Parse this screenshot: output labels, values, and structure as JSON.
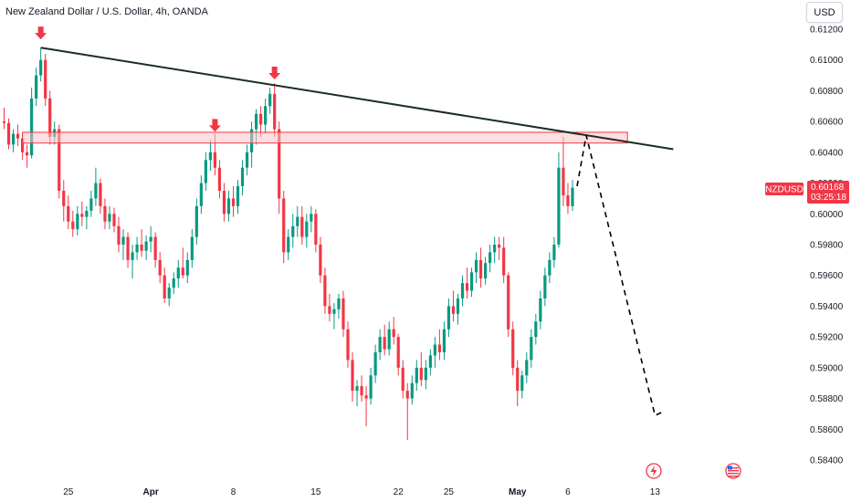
{
  "header": {
    "title": "New Zealand Dollar / U.S. Dollar, 4h, OANDA",
    "currency_button": "USD"
  },
  "colors": {
    "up": "#089981",
    "down": "#f23645",
    "trendline": "#1b2e1f",
    "zone_fill": "#f7c5c8",
    "zone_border": "#f23645",
    "arrow": "#f23645",
    "symbol_badge": "#f23645",
    "projection": "#000000"
  },
  "icons": [
    "lightning-event-icon",
    "us-flag-event-icon"
  ],
  "chart_data": {
    "type": "candlestick",
    "symbol": "NZDUSD",
    "last_price": "0.60168",
    "countdown": "03:25:18",
    "price_axis": {
      "min": 0.584,
      "max": 0.6125,
      "ticks": [
        "0.61200",
        "0.61000",
        "0.60800",
        "0.60600",
        "0.60400",
        "0.60200",
        "0.60000",
        "0.59800",
        "0.59600",
        "0.59400",
        "0.59200",
        "0.59000",
        "0.58800",
        "0.58600",
        "0.58400"
      ]
    },
    "time_axis": {
      "labels": [
        {
          "text": "25",
          "bar": 14,
          "bold": false
        },
        {
          "text": "Apr",
          "bar": 32,
          "bold": true
        },
        {
          "text": "8",
          "bar": 50,
          "bold": false
        },
        {
          "text": "15",
          "bar": 68,
          "bold": false
        },
        {
          "text": "22",
          "bar": 86,
          "bold": false
        },
        {
          "text": "25",
          "bar": 97,
          "bold": false
        },
        {
          "text": "May",
          "bar": 112,
          "bold": true
        },
        {
          "text": "6",
          "bar": 123,
          "bold": false
        },
        {
          "text": "13",
          "bar": 142,
          "bold": false
        }
      ]
    },
    "zone": {
      "top": 0.6053,
      "bottom": 0.6046,
      "start_bar": 4,
      "end_bar": 136
    },
    "trendline": {
      "start_bar": 8,
      "start_price": 0.6108,
      "end_bar": 146,
      "end_price": 0.6042
    },
    "resistance_arrows": [
      {
        "bar": 8,
        "price": 0.6111
      },
      {
        "bar": 46,
        "price": 0.6051
      },
      {
        "bar": 59,
        "price": 0.6085
      }
    ],
    "projection": [
      {
        "bar": 125,
        "price": 0.6018
      },
      {
        "bar": 127,
        "price": 0.6051
      },
      {
        "bar": 142,
        "price": 0.5869
      },
      {
        "bar": 143.5,
        "price": 0.5871
      }
    ],
    "candles": [
      [
        0.606,
        0.6069,
        0.6055,
        0.6059
      ],
      [
        0.6059,
        0.6062,
        0.6042,
        0.6045
      ],
      [
        0.6045,
        0.6055,
        0.604,
        0.6052
      ],
      [
        0.6052,
        0.6058,
        0.6044,
        0.6049
      ],
      [
        0.6049,
        0.6052,
        0.6035,
        0.604
      ],
      [
        0.604,
        0.6045,
        0.603,
        0.6038
      ],
      [
        0.6038,
        0.6082,
        0.6036,
        0.6075
      ],
      [
        0.6075,
        0.6095,
        0.607,
        0.609
      ],
      [
        0.609,
        0.6108,
        0.6086,
        0.61
      ],
      [
        0.61,
        0.6104,
        0.607,
        0.6075
      ],
      [
        0.6075,
        0.608,
        0.6045,
        0.605
      ],
      [
        0.605,
        0.606,
        0.6045,
        0.6055
      ],
      [
        0.6055,
        0.6058,
        0.601,
        0.6015
      ],
      [
        0.6015,
        0.6022,
        0.5995,
        0.6005
      ],
      [
        0.6005,
        0.6012,
        0.599,
        0.5995
      ],
      [
        0.5995,
        0.6002,
        0.5985,
        0.599
      ],
      [
        0.599,
        0.6005,
        0.5986,
        0.6
      ],
      [
        0.6,
        0.6008,
        0.5992,
        0.5998
      ],
      [
        0.5998,
        0.6005,
        0.599,
        0.6002
      ],
      [
        0.6002,
        0.6015,
        0.5998,
        0.601
      ],
      [
        0.601,
        0.603,
        0.6005,
        0.602
      ],
      [
        0.602,
        0.6023,
        0.6,
        0.6005
      ],
      [
        0.6005,
        0.601,
        0.599,
        0.5995
      ],
      [
        0.5995,
        0.6005,
        0.599,
        0.6
      ],
      [
        0.6,
        0.6004,
        0.5988,
        0.5992
      ],
      [
        0.5992,
        0.5998,
        0.5975,
        0.598
      ],
      [
        0.598,
        0.599,
        0.597,
        0.5985
      ],
      [
        0.5985,
        0.5988,
        0.5965,
        0.597
      ],
      [
        0.597,
        0.598,
        0.5958,
        0.5975
      ],
      [
        0.5975,
        0.5985,
        0.597,
        0.598
      ],
      [
        0.598,
        0.599,
        0.5972,
        0.5976
      ],
      [
        0.5976,
        0.5986,
        0.597,
        0.5982
      ],
      [
        0.5982,
        0.5992,
        0.5975,
        0.5985
      ],
      [
        0.5985,
        0.5988,
        0.5965,
        0.597
      ],
      [
        0.597,
        0.5975,
        0.5955,
        0.596
      ],
      [
        0.596,
        0.5965,
        0.5942,
        0.5945
      ],
      [
        0.5945,
        0.5955,
        0.594,
        0.5952
      ],
      [
        0.5952,
        0.5962,
        0.5948,
        0.5958
      ],
      [
        0.5958,
        0.597,
        0.5952,
        0.5965
      ],
      [
        0.5965,
        0.5978,
        0.5958,
        0.596
      ],
      [
        0.596,
        0.5975,
        0.5955,
        0.597
      ],
      [
        0.597,
        0.599,
        0.5965,
        0.5985
      ],
      [
        0.5985,
        0.601,
        0.598,
        0.6005
      ],
      [
        0.6005,
        0.6025,
        0.6,
        0.602
      ],
      [
        0.602,
        0.604,
        0.6015,
        0.6035
      ],
      [
        0.6035,
        0.6048,
        0.6028,
        0.604
      ],
      [
        0.604,
        0.6052,
        0.6025,
        0.603
      ],
      [
        0.603,
        0.6035,
        0.601,
        0.6015
      ],
      [
        0.6015,
        0.602,
        0.5995,
        0.6
      ],
      [
        0.6,
        0.6015,
        0.5995,
        0.601
      ],
      [
        0.601,
        0.6018,
        0.5998,
        0.6005
      ],
      [
        0.6005,
        0.6022,
        0.6,
        0.6018
      ],
      [
        0.6018,
        0.6035,
        0.6012,
        0.603
      ],
      [
        0.603,
        0.6045,
        0.6025,
        0.604
      ],
      [
        0.604,
        0.606,
        0.603,
        0.6055
      ],
      [
        0.6055,
        0.6068,
        0.6045,
        0.6065
      ],
      [
        0.6065,
        0.607,
        0.605,
        0.6058
      ],
      [
        0.6058,
        0.6075,
        0.6052,
        0.607
      ],
      [
        0.607,
        0.6082,
        0.6065,
        0.6078
      ],
      [
        0.6078,
        0.6085,
        0.605,
        0.6055
      ],
      [
        0.6055,
        0.606,
        0.6,
        0.601
      ],
      [
        0.601,
        0.6015,
        0.5968,
        0.5975
      ],
      [
        0.5975,
        0.599,
        0.597,
        0.5985
      ],
      [
        0.5985,
        0.6,
        0.5978,
        0.5992
      ],
      [
        0.5992,
        0.6005,
        0.5985,
        0.5998
      ],
      [
        0.5998,
        0.6005,
        0.598,
        0.5985
      ],
      [
        0.5985,
        0.6,
        0.5978,
        0.5995
      ],
      [
        0.5995,
        0.6005,
        0.5988,
        0.6
      ],
      [
        0.6,
        0.6003,
        0.5975,
        0.598
      ],
      [
        0.598,
        0.5985,
        0.5955,
        0.596
      ],
      [
        0.596,
        0.5965,
        0.5935,
        0.594
      ],
      [
        0.594,
        0.5948,
        0.593,
        0.5935
      ],
      [
        0.5935,
        0.5942,
        0.5925,
        0.5938
      ],
      [
        0.5938,
        0.5948,
        0.5932,
        0.5945
      ],
      [
        0.5945,
        0.595,
        0.592,
        0.5925
      ],
      [
        0.5925,
        0.593,
        0.59,
        0.5905
      ],
      [
        0.5905,
        0.591,
        0.5878,
        0.5885
      ],
      [
        0.5885,
        0.5892,
        0.5875,
        0.5888
      ],
      [
        0.5888,
        0.5895,
        0.5878,
        0.5882
      ],
      [
        0.5882,
        0.5888,
        0.5862,
        0.588
      ],
      [
        0.588,
        0.59,
        0.5876,
        0.5895
      ],
      [
        0.5895,
        0.5915,
        0.589,
        0.591
      ],
      [
        0.591,
        0.5925,
        0.5905,
        0.592
      ],
      [
        0.592,
        0.5928,
        0.5908,
        0.5912
      ],
      [
        0.5912,
        0.593,
        0.5908,
        0.5925
      ],
      [
        0.5925,
        0.5933,
        0.5915,
        0.592
      ],
      [
        0.592,
        0.5922,
        0.5895,
        0.59
      ],
      [
        0.59,
        0.5905,
        0.588,
        0.5885
      ],
      [
        0.5885,
        0.589,
        0.5853,
        0.588
      ],
      [
        0.588,
        0.5895,
        0.5876,
        0.589
      ],
      [
        0.589,
        0.5905,
        0.5885,
        0.59
      ],
      [
        0.59,
        0.591,
        0.5888,
        0.5892
      ],
      [
        0.5892,
        0.5905,
        0.5886,
        0.59
      ],
      [
        0.59,
        0.5912,
        0.5895,
        0.5908
      ],
      [
        0.5908,
        0.592,
        0.59,
        0.5915
      ],
      [
        0.5915,
        0.5925,
        0.5905,
        0.591
      ],
      [
        0.591,
        0.593,
        0.5905,
        0.5925
      ],
      [
        0.5925,
        0.5945,
        0.592,
        0.594
      ],
      [
        0.594,
        0.595,
        0.593,
        0.5935
      ],
      [
        0.5935,
        0.5948,
        0.5928,
        0.5945
      ],
      [
        0.5945,
        0.596,
        0.594,
        0.5955
      ],
      [
        0.5955,
        0.5965,
        0.5945,
        0.595
      ],
      [
        0.595,
        0.5965,
        0.5946,
        0.5962
      ],
      [
        0.5962,
        0.5975,
        0.5955,
        0.597
      ],
      [
        0.597,
        0.5978,
        0.5952,
        0.5958
      ],
      [
        0.5958,
        0.5972,
        0.5954,
        0.5968
      ],
      [
        0.5968,
        0.598,
        0.5962,
        0.5975
      ],
      [
        0.5975,
        0.5985,
        0.5968,
        0.598
      ],
      [
        0.598,
        0.5985,
        0.597,
        0.5978
      ],
      [
        0.5978,
        0.5985,
        0.5955,
        0.596
      ],
      [
        0.596,
        0.5962,
        0.592,
        0.5925
      ],
      [
        0.5925,
        0.593,
        0.5895,
        0.59
      ],
      [
        0.59,
        0.5905,
        0.5875,
        0.5885
      ],
      [
        0.5885,
        0.5898,
        0.588,
        0.5895
      ],
      [
        0.5895,
        0.591,
        0.589,
        0.5905
      ],
      [
        0.5905,
        0.5925,
        0.59,
        0.592
      ],
      [
        0.592,
        0.5935,
        0.5915,
        0.593
      ],
      [
        0.593,
        0.595,
        0.5925,
        0.5945
      ],
      [
        0.5945,
        0.5965,
        0.594,
        0.596
      ],
      [
        0.596,
        0.5975,
        0.5955,
        0.597
      ],
      [
        0.597,
        0.5985,
        0.5965,
        0.598
      ],
      [
        0.598,
        0.604,
        0.5978,
        0.603
      ],
      [
        0.603,
        0.605,
        0.6005,
        0.6012
      ],
      [
        0.6012,
        0.602,
        0.6,
        0.6005
      ],
      [
        0.6005,
        0.6022,
        0.6002,
        0.6017
      ]
    ]
  }
}
